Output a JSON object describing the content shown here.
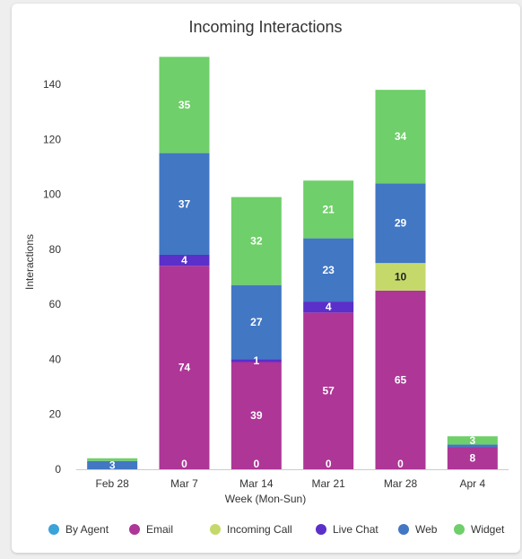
{
  "chart_data": {
    "type": "bar",
    "stacked": true,
    "title": "Incoming Interactions",
    "xlabel": "Week (Mon-Sun)",
    "ylabel": "Interactions",
    "ylim": [
      0,
      150
    ],
    "yticks": [
      0,
      20,
      40,
      60,
      80,
      100,
      120,
      140
    ],
    "categories": [
      "Feb 28",
      "Mar 7",
      "Mar 14",
      "Mar 21",
      "Mar 28",
      "Apr 4"
    ],
    "series": [
      {
        "name": "By Agent",
        "color": "#3aa3d8",
        "values": [
          0,
          0,
          0,
          0,
          0,
          0
        ]
      },
      {
        "name": "Email",
        "color": "#ad3697",
        "values": [
          0,
          74,
          39,
          57,
          65,
          8
        ]
      },
      {
        "name": "Incoming Call",
        "color": "#c5d96b",
        "values": [
          0,
          0,
          0,
          0,
          10,
          0
        ]
      },
      {
        "name": "Live Chat",
        "color": "#5a2fca",
        "values": [
          0,
          4,
          1,
          4,
          0,
          0
        ]
      },
      {
        "name": "Web",
        "color": "#4277c3",
        "values": [
          3,
          37,
          27,
          23,
          29,
          1
        ]
      },
      {
        "name": "Widget",
        "color": "#6fcf6a",
        "values": [
          1,
          35,
          32,
          21,
          34,
          3
        ]
      }
    ],
    "data_labels": [
      {
        "category": "Feb 28",
        "series": "Web",
        "text": "3"
      },
      {
        "category": "Mar 7",
        "series": "By Agent",
        "text": "0"
      },
      {
        "category": "Mar 7",
        "series": "Email",
        "text": "74"
      },
      {
        "category": "Mar 7",
        "series": "Live Chat",
        "text": "4"
      },
      {
        "category": "Mar 7",
        "series": "Web",
        "text": "37"
      },
      {
        "category": "Mar 7",
        "series": "Widget",
        "text": "35"
      },
      {
        "category": "Mar 14",
        "series": "By Agent",
        "text": "0"
      },
      {
        "category": "Mar 14",
        "series": "Email",
        "text": "39"
      },
      {
        "category": "Mar 14",
        "series": "Live Chat",
        "text": "1"
      },
      {
        "category": "Mar 14",
        "series": "Web",
        "text": "27"
      },
      {
        "category": "Mar 14",
        "series": "Widget",
        "text": "32"
      },
      {
        "category": "Mar 21",
        "series": "By Agent",
        "text": "0"
      },
      {
        "category": "Mar 21",
        "series": "Email",
        "text": "57"
      },
      {
        "category": "Mar 21",
        "series": "Live Chat",
        "text": "4"
      },
      {
        "category": "Mar 21",
        "series": "Web",
        "text": "23"
      },
      {
        "category": "Mar 21",
        "series": "Widget",
        "text": "21"
      },
      {
        "category": "Mar 28",
        "series": "By Agent",
        "text": "0"
      },
      {
        "category": "Mar 28",
        "series": "Email",
        "text": "65"
      },
      {
        "category": "Mar 28",
        "series": "Incoming Call",
        "text": "10"
      },
      {
        "category": "Mar 28",
        "series": "Web",
        "text": "29"
      },
      {
        "category": "Mar 28",
        "series": "Widget",
        "text": "34"
      },
      {
        "category": "Apr 4",
        "series": "Email",
        "text": "8"
      },
      {
        "category": "Apr 4",
        "series": "Widget",
        "text": "3"
      }
    ],
    "legend_position": "bottom",
    "grid": false
  }
}
